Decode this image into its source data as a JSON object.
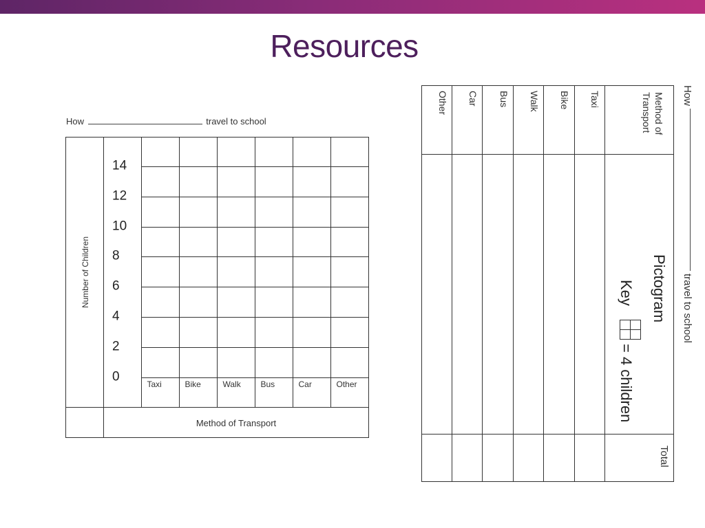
{
  "slide": {
    "title": "Resources",
    "accent_gradient": [
      "#5e2566",
      "#b9307f"
    ],
    "title_color": "#4d1f5c"
  },
  "bar_sheet": {
    "heading_prefix": "How",
    "heading_suffix": "travel to school",
    "y_axis_label": "Number of Children",
    "x_axis_label": "Method of Transport",
    "y_ticks": [
      "14",
      "12",
      "10",
      "8",
      "6",
      "4",
      "2",
      "0"
    ],
    "categories": [
      "Taxi",
      "Bike",
      "Walk",
      "Bus",
      "Car",
      "Other"
    ]
  },
  "pictogram_sheet": {
    "heading_prefix": "How",
    "heading_suffix": "travel to school",
    "header_line1": "Method of",
    "header_line2": "Transport",
    "rows": [
      "Taxi",
      "Bike",
      "Walk",
      "Bus",
      "Car",
      "Other"
    ],
    "title": "Pictogram",
    "key_label": "Key",
    "key_value": "= 4 children",
    "total_label": "Total"
  }
}
